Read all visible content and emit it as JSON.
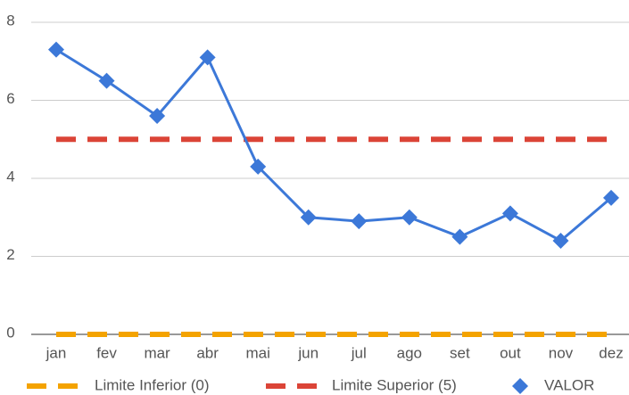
{
  "chart_data": {
    "type": "line",
    "categories": [
      "jan",
      "fev",
      "mar",
      "abr",
      "mai",
      "jun",
      "jul",
      "ago",
      "set",
      "out",
      "nov",
      "dez"
    ],
    "series": [
      {
        "name": "Limite Inferior (0)",
        "color": "#f4a300",
        "style": "dashed",
        "values": [
          0,
          0,
          0,
          0,
          0,
          0,
          0,
          0,
          0,
          0,
          0,
          0
        ]
      },
      {
        "name": "Limite Superior (5)",
        "color": "#db4437",
        "style": "dashed",
        "values": [
          5,
          5,
          5,
          5,
          5,
          5,
          5,
          5,
          5,
          5,
          5,
          5
        ]
      },
      {
        "name": "VALOR",
        "color": "#3c78d8",
        "style": "solid",
        "marker": "diamond",
        "values": [
          7.3,
          6.5,
          5.6,
          7.1,
          4.3,
          3.0,
          2.9,
          3.0,
          2.5,
          3.1,
          2.4,
          3.5
        ]
      }
    ],
    "ylim": [
      0,
      8
    ],
    "yticks": [
      0,
      2,
      4,
      6,
      8
    ],
    "grid": true,
    "legend": "bottom"
  }
}
